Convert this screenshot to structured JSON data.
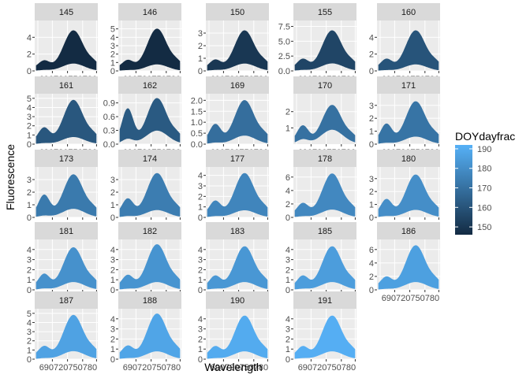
{
  "chart_data": {
    "type": "area",
    "facet_by": "DOY",
    "xlabel": "Wavelength",
    "ylabel": "Fluorescence",
    "x_tick_text": "690720750780",
    "grid": true,
    "legend": {
      "title": "DOYdayfrac",
      "placement": "right",
      "range": [
        146,
        192
      ],
      "ticks": [
        190,
        180,
        170,
        160,
        150
      ],
      "color_low": "#132B43",
      "color_high": "#56B1F7"
    },
    "facets": [
      {
        "label": "145",
        "doy": 145,
        "ylim": [
          0,
          6.0
        ],
        "yticks": [
          "4",
          "2",
          "0"
        ],
        "yvals": [
          4,
          2,
          0
        ],
        "max": 4.8,
        "min_peak": 0.9,
        "shoulder": 0.18,
        "min_shoulder": 0.1
      },
      {
        "label": "146",
        "doy": 146,
        "ylim": [
          0,
          6.0
        ],
        "yticks": [
          "5",
          "4",
          "3",
          "2",
          "1",
          "0"
        ],
        "yvals": [
          5,
          4,
          3,
          2,
          1,
          0
        ],
        "max": 5.0,
        "min_peak": 0.8,
        "shoulder": 0.18,
        "min_shoulder": 0.1
      },
      {
        "label": "150",
        "doy": 150,
        "ylim": [
          0,
          4.0
        ],
        "yticks": [
          "3",
          "2",
          "1",
          "0"
        ],
        "yvals": [
          3,
          2,
          1,
          0
        ],
        "max": 3.2,
        "min_peak": 0.6,
        "shoulder": 0.2,
        "min_shoulder": 0.1
      },
      {
        "label": "155",
        "doy": 155,
        "ylim": [
          0,
          8.5
        ],
        "yticks": [
          "7.5",
          "5.0",
          "2.5",
          "0.0"
        ],
        "yvals": [
          7.5,
          5.0,
          2.5,
          0
        ],
        "max": 6.8,
        "min_peak": 1.3,
        "shoulder": 0.22,
        "min_shoulder": 0.1
      },
      {
        "label": "160",
        "doy": 160,
        "ylim": [
          0,
          6.0
        ],
        "yticks": [
          "4",
          "2",
          "0"
        ],
        "yvals": [
          4,
          2,
          0
        ],
        "max": 4.8,
        "min_peak": 0.8,
        "shoulder": 0.22,
        "min_shoulder": 0.1
      },
      {
        "label": "161",
        "doy": 161,
        "ylim": [
          0,
          5.5
        ],
        "yticks": [
          "5",
          "4",
          "3",
          "2",
          "1",
          "0"
        ],
        "yvals": [
          5,
          4,
          3,
          2,
          1,
          0
        ],
        "max": 4.8,
        "min_peak": 0.8,
        "shoulder": 0.3,
        "min_shoulder": 0.12
      },
      {
        "label": "162",
        "doy": 162,
        "ylim": [
          0,
          1.1
        ],
        "yticks": [
          "0.9",
          "0.6",
          "0.3",
          "0.0"
        ],
        "yvals": [
          0.9,
          0.6,
          0.3,
          0
        ],
        "max": 1.0,
        "min_peak": 0.3,
        "shoulder": 0.7,
        "min_shoulder": 0.35
      },
      {
        "label": "169",
        "doy": 169,
        "ylim": [
          0,
          2.3
        ],
        "yticks": [
          "2.0",
          "1.5",
          "1.0",
          "0.5",
          "0.0"
        ],
        "yvals": [
          2.0,
          1.5,
          1.0,
          0.5,
          0
        ],
        "max": 2.0,
        "min_peak": 0.4,
        "shoulder": 0.38,
        "min_shoulder": 0.15
      },
      {
        "label": "170",
        "doy": 170,
        "ylim": [
          0,
          3.1
        ],
        "yticks": [
          "2",
          "1"
        ],
        "yvals": [
          2,
          1
        ],
        "max": 2.4,
        "min_peak": 0.9,
        "shoulder": 0.4,
        "min_shoulder": 0.3
      },
      {
        "label": "171",
        "doy": 171,
        "ylim": [
          0,
          3.9
        ],
        "yticks": [
          "3",
          "2",
          "1",
          "0"
        ],
        "yvals": [
          3,
          2,
          1,
          0
        ],
        "max": 3.3,
        "min_peak": 0.6,
        "shoulder": 0.4,
        "min_shoulder": 0.15
      },
      {
        "label": "173",
        "doy": 173,
        "ylim": [
          0,
          4.0
        ],
        "yticks": [
          "3",
          "2",
          "1",
          "0"
        ],
        "yvals": [
          3,
          2,
          1,
          0
        ],
        "max": 3.4,
        "min_peak": 0.7,
        "shoulder": 0.45,
        "min_shoulder": 0.18
      },
      {
        "label": "174",
        "doy": 174,
        "ylim": [
          0,
          4.0
        ],
        "yticks": [
          "3",
          "2",
          "1",
          "0"
        ],
        "yvals": [
          3,
          2,
          1,
          0
        ],
        "max": 3.5,
        "min_peak": 0.6,
        "shoulder": 0.35,
        "min_shoulder": 0.15
      },
      {
        "label": "177",
        "doy": 177,
        "ylim": [
          0,
          4.8
        ],
        "yticks": [
          "4",
          "3",
          "2",
          "1",
          "0"
        ],
        "yvals": [
          4,
          3,
          2,
          1,
          0
        ],
        "max": 4.2,
        "min_peak": 0.7,
        "shoulder": 0.3,
        "min_shoulder": 0.15
      },
      {
        "label": "178",
        "doy": 178,
        "ylim": [
          0,
          7.5
        ],
        "yticks": [
          "6",
          "4",
          "2",
          "0"
        ],
        "yvals": [
          6,
          4,
          2,
          0
        ],
        "max": 6.5,
        "min_peak": 1.2,
        "shoulder": 0.25,
        "min_shoulder": 0.12
      },
      {
        "label": "180",
        "doy": 180,
        "ylim": [
          0,
          3.9
        ],
        "yticks": [
          "3",
          "2",
          "1",
          "0"
        ],
        "yvals": [
          3,
          2,
          1,
          0
        ],
        "max": 3.3,
        "min_peak": 0.6,
        "shoulder": 0.35,
        "min_shoulder": 0.15
      },
      {
        "label": "181",
        "doy": 181,
        "ylim": [
          0,
          5.0
        ],
        "yticks": [
          "4",
          "3",
          "2",
          "1",
          "0"
        ],
        "yvals": [
          4,
          3,
          2,
          1,
          0
        ],
        "max": 4.2,
        "min_peak": 0.8,
        "shoulder": 0.3,
        "min_shoulder": 0.15
      },
      {
        "label": "182",
        "doy": 182,
        "ylim": [
          0,
          5.0
        ],
        "yticks": [
          "4",
          "3",
          "2",
          "1",
          "0"
        ],
        "yvals": [
          4,
          3,
          2,
          1,
          0
        ],
        "max": 4.5,
        "min_peak": 0.8,
        "shoulder": 0.25,
        "min_shoulder": 0.12
      },
      {
        "label": "183",
        "doy": 183,
        "ylim": [
          0,
          5.0
        ],
        "yticks": [
          "4",
          "3",
          "2",
          "1",
          "0"
        ],
        "yvals": [
          4,
          3,
          2,
          1,
          0
        ],
        "max": 4.3,
        "min_peak": 0.8,
        "shoulder": 0.25,
        "min_shoulder": 0.12
      },
      {
        "label": "185",
        "doy": 185,
        "ylim": [
          0,
          5.0
        ],
        "yticks": [
          "4",
          "3",
          "2",
          "1",
          "0"
        ],
        "yvals": [
          4,
          3,
          2,
          1,
          0
        ],
        "max": 4.3,
        "min_peak": 0.8,
        "shoulder": 0.25,
        "min_shoulder": 0.12
      },
      {
        "label": "186",
        "doy": 186,
        "ylim": [
          0,
          7.5
        ],
        "yticks": [
          "6",
          "4",
          "2",
          "0"
        ],
        "yvals": [
          6,
          4,
          2,
          0
        ],
        "max": 6.6,
        "min_peak": 1.2,
        "shoulder": 0.22,
        "min_shoulder": 0.1
      },
      {
        "label": "187",
        "doy": 187,
        "ylim": [
          0,
          5.5
        ],
        "yticks": [
          "5",
          "4",
          "3",
          "2",
          "1",
          "0"
        ],
        "yvals": [
          5,
          4,
          3,
          2,
          1,
          0
        ],
        "max": 4.8,
        "min_peak": 0.9,
        "shoulder": 0.22,
        "min_shoulder": 0.1
      },
      {
        "label": "188",
        "doy": 188,
        "ylim": [
          0,
          5.0
        ],
        "yticks": [
          "4",
          "3",
          "2",
          "1",
          "0"
        ],
        "yvals": [
          4,
          3,
          2,
          1,
          0
        ],
        "max": 4.5,
        "min_peak": 0.8,
        "shoulder": 0.22,
        "min_shoulder": 0.1
      },
      {
        "label": "190",
        "doy": 190,
        "ylim": [
          0,
          5.0
        ],
        "yticks": [
          "4",
          "3",
          "2",
          "1",
          "0"
        ],
        "yvals": [
          4,
          3,
          2,
          1,
          0
        ],
        "max": 4.3,
        "min_peak": 0.8,
        "shoulder": 0.22,
        "min_shoulder": 0.1
      },
      {
        "label": "191",
        "doy": 191,
        "ylim": [
          0,
          5.0
        ],
        "yticks": [
          "4",
          "3",
          "2",
          "1",
          "0"
        ],
        "yvals": [
          4,
          3,
          2,
          1,
          0
        ],
        "max": 4.3,
        "min_peak": 0.8,
        "shoulder": 0.22,
        "min_shoulder": 0.1
      }
    ]
  }
}
